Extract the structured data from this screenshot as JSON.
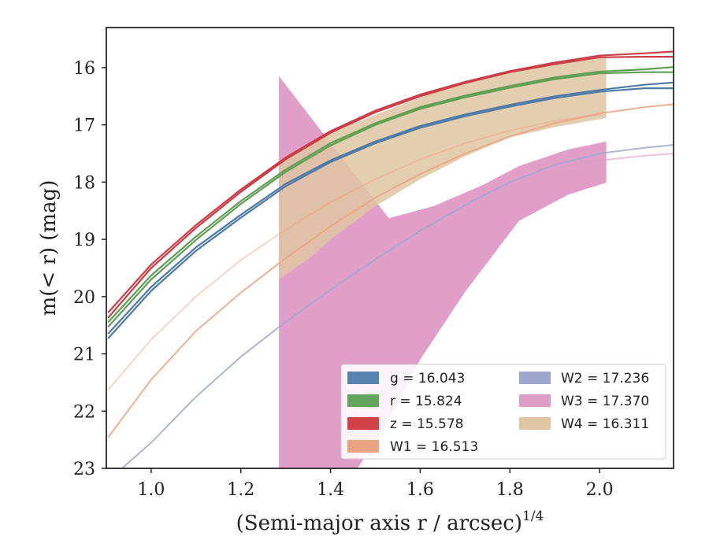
{
  "chart_data": {
    "type": "line",
    "xlabel": "(Semi-major axis r / arcsec)",
    "xlabel_sup": "1/4",
    "ylabel": "m(< r) (mag)",
    "xlim": [
      0.9,
      2.165
    ],
    "ylim": [
      23.0,
      15.3
    ],
    "y_inverted": true,
    "xticks": [
      "1.0",
      "1.2",
      "1.4",
      "1.6",
      "1.8",
      "2.0"
    ],
    "yticks": [
      "16",
      "17",
      "18",
      "19",
      "20",
      "21",
      "22",
      "23"
    ],
    "grid": false,
    "legend": {
      "placement": "lower-right",
      "columns": 2,
      "entries": [
        {
          "label": "g = 16.043",
          "color": "#5483b0"
        },
        {
          "label": "r = 15.824",
          "color": "#62a35e"
        },
        {
          "label": "z = 15.578",
          "color": "#d24148"
        },
        {
          "label": "W1 = 16.513",
          "color": "#eba282"
        },
        {
          "label": "W2 = 17.236",
          "color": "#9da8cc"
        },
        {
          "label": "W3 = 17.370",
          "color": "#dc9cc6"
        },
        {
          "label": "W4 = 16.311",
          "color": "#dfc6a2"
        }
      ]
    },
    "series": [
      {
        "name": "g = 16.043",
        "kind": "line",
        "color": "#4e7aa6",
        "opacity": 1.0,
        "width": 2.2,
        "x": [
          0.905,
          1.0,
          1.1,
          1.2,
          1.3,
          1.4,
          1.5,
          1.6,
          1.7,
          1.8,
          1.9,
          2.0,
          2.1,
          2.165
        ],
        "y": [
          20.72,
          19.9,
          19.2,
          18.62,
          18.07,
          17.65,
          17.32,
          17.05,
          16.85,
          16.68,
          16.53,
          16.42,
          16.36,
          16.36
        ]
      },
      {
        "name": "g = 16.043",
        "kind": "line",
        "color": "#4e7aa6",
        "opacity": 1.0,
        "width": 2.2,
        "x": [
          0.905,
          1.0,
          1.1,
          1.2,
          1.3,
          1.4,
          1.5,
          1.6,
          1.7,
          1.8,
          1.9,
          2.0,
          2.1,
          2.165
        ],
        "y": [
          20.64,
          19.83,
          19.14,
          18.57,
          18.03,
          17.62,
          17.29,
          17.02,
          16.82,
          16.65,
          16.5,
          16.39,
          16.3,
          16.26
        ]
      },
      {
        "name": "r = 15.824",
        "kind": "line",
        "color": "#5e9e55",
        "opacity": 1.0,
        "width": 2.2,
        "x": [
          0.905,
          1.0,
          1.1,
          1.2,
          1.3,
          1.4,
          1.5,
          1.6,
          1.7,
          1.8,
          1.9,
          2.0,
          2.1,
          2.165
        ],
        "y": [
          20.52,
          19.7,
          19.01,
          18.38,
          17.82,
          17.36,
          17.0,
          16.72,
          16.52,
          16.35,
          16.2,
          16.1,
          16.08,
          16.08
        ]
      },
      {
        "name": "r = 15.824",
        "kind": "line",
        "color": "#5e9e55",
        "opacity": 1.0,
        "width": 2.2,
        "x": [
          0.905,
          1.0,
          1.1,
          1.2,
          1.3,
          1.4,
          1.5,
          1.6,
          1.7,
          1.8,
          1.9,
          2.0,
          2.1,
          2.165
        ],
        "y": [
          20.44,
          19.63,
          18.95,
          18.33,
          17.78,
          17.32,
          16.97,
          16.69,
          16.49,
          16.32,
          16.17,
          16.07,
          16.03,
          15.99
        ]
      },
      {
        "name": "z = 15.578",
        "kind": "line",
        "color": "#cc3d45",
        "opacity": 1.0,
        "width": 2.2,
        "x": [
          0.905,
          1.0,
          1.1,
          1.2,
          1.3,
          1.4,
          1.5,
          1.6,
          1.7,
          1.8,
          1.9,
          2.0,
          2.1,
          2.165
        ],
        "y": [
          20.36,
          19.5,
          18.8,
          18.17,
          17.6,
          17.14,
          16.78,
          16.5,
          16.27,
          16.08,
          15.94,
          15.82,
          15.81,
          15.81
        ]
      },
      {
        "name": "z = 15.578",
        "kind": "line",
        "color": "#cc3d45",
        "opacity": 1.0,
        "width": 2.2,
        "x": [
          0.905,
          1.0,
          1.1,
          1.2,
          1.3,
          1.4,
          1.5,
          1.6,
          1.7,
          1.8,
          1.9,
          2.0,
          2.1,
          2.165
        ],
        "y": [
          20.27,
          19.44,
          18.75,
          18.13,
          17.57,
          17.11,
          16.75,
          16.47,
          16.25,
          16.06,
          15.91,
          15.79,
          15.75,
          15.72
        ]
      },
      {
        "name": "W1 = 16.513",
        "kind": "line",
        "color": "#eba282",
        "opacity": 0.85,
        "width": 2.0,
        "x": [
          0.905,
          1.0,
          1.1,
          1.2,
          1.3,
          1.4,
          1.5,
          1.6,
          1.7,
          1.8,
          1.9,
          2.0,
          2.1,
          2.165
        ],
        "y": [
          22.45,
          21.45,
          20.6,
          19.93,
          19.33,
          18.77,
          18.27,
          17.86,
          17.5,
          17.2,
          16.97,
          16.8,
          16.69,
          16.64
        ]
      },
      {
        "name": "W1 = 16.513",
        "kind": "line",
        "color": "#eba282",
        "opacity": 0.45,
        "width": 2.0,
        "x": [
          0.905,
          1.0,
          1.1,
          1.2,
          1.3,
          1.4,
          1.5,
          1.6,
          1.7,
          1.8,
          1.9,
          2.0
        ],
        "y": [
          21.62,
          20.75,
          20.0,
          19.36,
          18.83,
          18.35,
          17.95,
          17.6,
          17.32,
          17.1,
          16.93,
          16.82
        ]
      },
      {
        "name": "W2 = 17.236",
        "kind": "line",
        "color": "#9da8cc",
        "opacity": 0.85,
        "width": 2.0,
        "x": [
          0.935,
          1.0,
          1.1,
          1.2,
          1.3,
          1.4,
          1.5,
          1.6,
          1.7,
          1.8,
          1.9,
          2.0,
          2.1,
          2.165
        ],
        "y": [
          23.0,
          22.55,
          21.75,
          21.05,
          20.44,
          19.88,
          19.35,
          18.85,
          18.4,
          18.0,
          17.7,
          17.5,
          17.4,
          17.35
        ]
      },
      {
        "name": "W3 = 17.370",
        "kind": "line",
        "color": "#dc9cc6",
        "opacity": 0.6,
        "width": 2.0,
        "x": [
          1.905,
          2.0,
          2.1,
          2.165
        ],
        "y": [
          17.75,
          17.62,
          17.54,
          17.5
        ]
      },
      {
        "name": "W3 = 17.370",
        "kind": "band",
        "color": "#d886bc",
        "opacity": 0.8,
        "x": [
          1.285,
          1.285,
          1.53,
          1.63,
          1.74,
          1.82,
          1.93,
          2.015,
          2.015,
          1.93,
          1.82,
          1.7,
          1.6,
          1.52,
          1.46,
          1.4,
          1.35,
          1.285
        ],
        "y": [
          23.0,
          16.15,
          18.63,
          18.42,
          18.05,
          17.72,
          17.43,
          17.29,
          18.01,
          18.22,
          18.68,
          19.92,
          21.1,
          22.3,
          23.0,
          23.0,
          23.0,
          23.0
        ]
      },
      {
        "name": "W4 = 16.311",
        "kind": "band",
        "color": "#dfc6a2",
        "opacity": 0.85,
        "x": [
          1.285,
          1.35,
          1.45,
          1.55,
          1.65,
          1.75,
          1.85,
          1.95,
          2.015,
          2.015,
          1.9,
          1.8,
          1.7,
          1.6,
          1.5,
          1.4,
          1.35,
          1.285
        ],
        "y": [
          17.7,
          17.35,
          16.98,
          16.67,
          16.38,
          16.15,
          15.99,
          15.86,
          15.83,
          16.88,
          17.04,
          17.22,
          17.55,
          17.95,
          18.42,
          19.0,
          19.35,
          19.7
        ]
      }
    ]
  }
}
